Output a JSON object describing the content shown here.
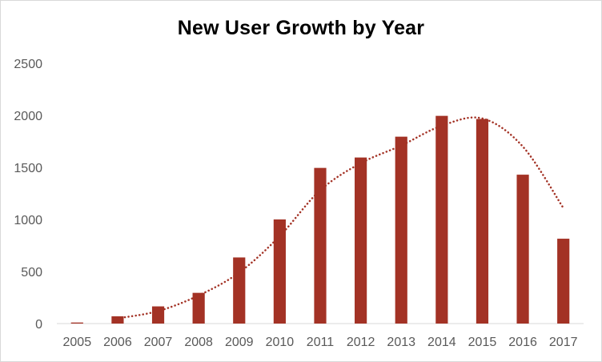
{
  "chart_data": {
    "type": "bar",
    "title": "New User Growth by Year",
    "xlabel": "",
    "ylabel": "",
    "categories": [
      "2005",
      "2006",
      "2007",
      "2008",
      "2009",
      "2010",
      "2011",
      "2012",
      "2013",
      "2014",
      "2015",
      "2016",
      "2017"
    ],
    "values": [
      10,
      70,
      165,
      295,
      635,
      1000,
      1495,
      1595,
      1795,
      1995,
      1965,
      1430,
      815
    ],
    "trendline": {
      "style": "dotted",
      "values": [
        null,
        50,
        120,
        270,
        490,
        840,
        1280,
        1540,
        1710,
        1900,
        1970,
        1700,
        1110
      ]
    },
    "ylim": [
      0,
      2500
    ],
    "yticks": [
      0,
      500,
      1000,
      1500,
      2000,
      2500
    ],
    "grid": false,
    "legend": "none",
    "colors": {
      "bar": "#A33225",
      "trendline": "#A33225",
      "axis": "#d9d9d9",
      "tick_text": "#595959"
    }
  }
}
